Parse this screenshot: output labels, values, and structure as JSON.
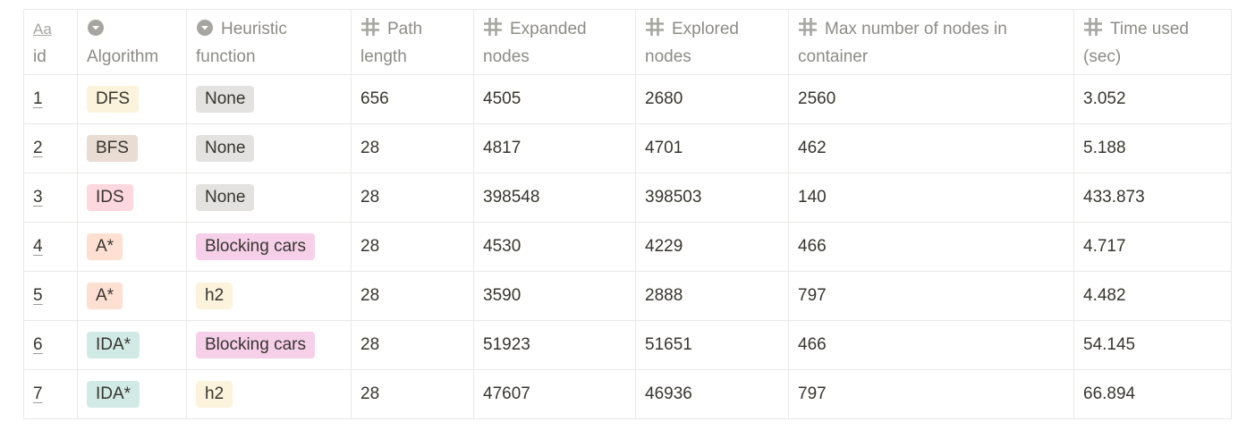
{
  "columns": [
    {
      "line1": "Aa",
      "line2": "id",
      "icon": "text-property-icon"
    },
    {
      "line1": "",
      "line2": "Algorithm",
      "icon": "select-property-icon"
    },
    {
      "line1": "Heuristic",
      "line2": "function",
      "icon": "select-property-icon"
    },
    {
      "line1": "Path",
      "line2": "length",
      "icon": "number-property-icon"
    },
    {
      "line1": "Expanded",
      "line2": "nodes",
      "icon": "number-property-icon"
    },
    {
      "line1": "Explored",
      "line2": "nodes",
      "icon": "number-property-icon"
    },
    {
      "line1": "Max number of nodes in",
      "line2": "container",
      "icon": "number-property-icon"
    },
    {
      "line1": "Time used",
      "line2": "(sec)",
      "icon": "number-property-icon"
    }
  ],
  "tag_colors": {
    "DFS": "#fbf3db",
    "BFS": "#e9dcd3",
    "IDS": "#ffd7de",
    "A*": "#fde0d2",
    "IDA*": "#d2eae5",
    "None": "#e3e2e0",
    "Blocking cars": "#f6d0e9",
    "h2": "#fbf3db"
  },
  "rows": [
    {
      "id": "1",
      "algorithm": "DFS",
      "heuristic": "None",
      "path_length": "656",
      "expanded": "4505",
      "explored": "2680",
      "max_nodes": "2560",
      "time": "3.052"
    },
    {
      "id": "2",
      "algorithm": "BFS",
      "heuristic": "None",
      "path_length": "28",
      "expanded": "4817",
      "explored": "4701",
      "max_nodes": "462",
      "time": "5.188"
    },
    {
      "id": "3",
      "algorithm": "IDS",
      "heuristic": "None",
      "path_length": "28",
      "expanded": "398548",
      "explored": "398503",
      "max_nodes": "140",
      "time": "433.873"
    },
    {
      "id": "4",
      "algorithm": "A*",
      "heuristic": "Blocking cars",
      "path_length": "28",
      "expanded": "4530",
      "explored": "4229",
      "max_nodes": "466",
      "time": "4.717"
    },
    {
      "id": "5",
      "algorithm": "A*",
      "heuristic": "h2",
      "path_length": "28",
      "expanded": "3590",
      "explored": "2888",
      "max_nodes": "797",
      "time": "4.482"
    },
    {
      "id": "6",
      "algorithm": "IDA*",
      "heuristic": "Blocking cars",
      "path_length": "28",
      "expanded": "51923",
      "explored": "51651",
      "max_nodes": "466",
      "time": "54.145"
    },
    {
      "id": "7",
      "algorithm": "IDA*",
      "heuristic": "h2",
      "path_length": "28",
      "expanded": "47607",
      "explored": "46936",
      "max_nodes": "797",
      "time": "66.894"
    }
  ]
}
